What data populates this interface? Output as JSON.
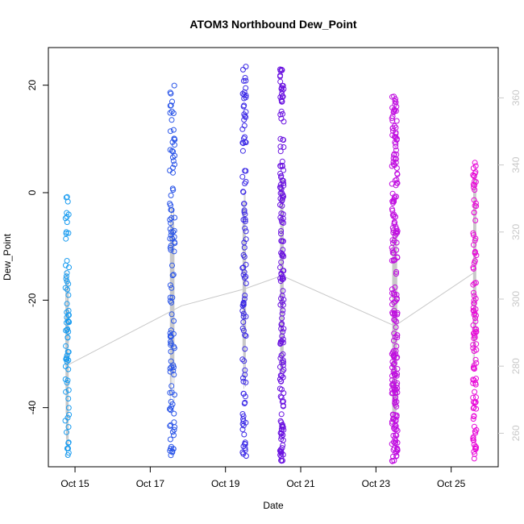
{
  "chart_data": {
    "type": "scatter",
    "title": "ATOM3 Northbound Dew_Point",
    "xlabel": "Date",
    "ylabel": "Dew_Point",
    "x_ticks": [
      "Oct 15",
      "Oct 17",
      "Oct 19",
      "Oct 21",
      "Oct 23",
      "Oct 25"
    ],
    "x_range": [
      "2023-10-14T07:00",
      "2023-10-26T06:00"
    ],
    "y_range": [
      -51,
      27
    ],
    "y_ticks": [
      -40,
      -20,
      0,
      20
    ],
    "y2_range": [
      250,
      375
    ],
    "y2_ticks": [
      260,
      280,
      300,
      320,
      340,
      360
    ],
    "grid": false,
    "legend": "none",
    "color_scale": [
      "#00b4ff",
      "#4b1ee6",
      "#ff00dc"
    ],
    "bursts": [
      {
        "center": "2023-10-14T19:00",
        "spread_hours": 2.4,
        "count": 70,
        "y_min": -49,
        "y_max": 0,
        "color": "#1a9cf0"
      },
      {
        "center": "2023-10-17T14:00",
        "spread_hours": 3.2,
        "count": 110,
        "y_min": -49,
        "y_max": 20,
        "color": "#2a55e8"
      },
      {
        "center": "2023-10-19T12:00",
        "spread_hours": 2.4,
        "count": 105,
        "y_min": -49,
        "y_max": 24,
        "color": "#3c2ae6"
      },
      {
        "center": "2023-10-20T12:00",
        "spread_hours": 2.4,
        "count": 170,
        "y_min": -50,
        "y_max": 23,
        "color": "#6a12e0"
      },
      {
        "center": "2023-10-23T12:00",
        "spread_hours": 3.6,
        "count": 230,
        "y_min": -50,
        "y_max": 18,
        "color": "#c00ee0"
      },
      {
        "center": "2023-10-25T15:00",
        "spread_hours": 2.2,
        "count": 110,
        "y_min": -50,
        "y_max": 6,
        "color": "#e80ad8"
      }
    ],
    "trend_line": [
      {
        "x": "2023-10-14T18:00",
        "y2": 280
      },
      {
        "x": "2023-10-17T20:00",
        "y2": 298
      },
      {
        "x": "2023-10-19T12:00",
        "y2": 303
      },
      {
        "x": "2023-10-20T12:00",
        "y2": 307
      },
      {
        "x": "2023-10-23T12:00",
        "y2": 292
      },
      {
        "x": "2023-10-25T15:00",
        "y2": 308
      }
    ]
  }
}
